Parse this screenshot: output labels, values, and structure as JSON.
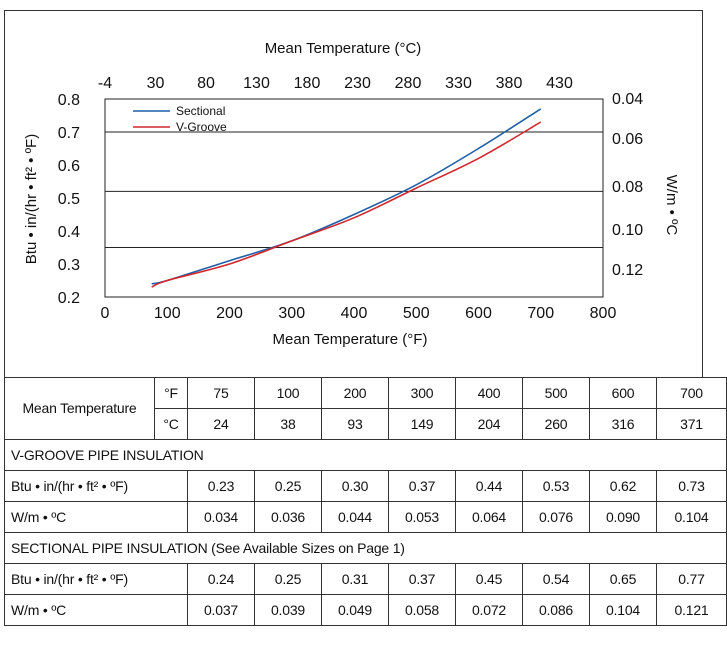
{
  "chart_data": {
    "type": "line",
    "x_axis": {
      "label": "Mean Temperature (°F)",
      "ticks": [
        0,
        100,
        200,
        300,
        400,
        500,
        600,
        700,
        800
      ],
      "range": [
        0,
        800
      ]
    },
    "x2_axis": {
      "label": "Mean Temperature (°C)",
      "ticks": [
        "-4",
        "30",
        "80",
        "130",
        "180",
        "230",
        "280",
        "330",
        "380",
        "430"
      ]
    },
    "y_axis": {
      "label": "Btu • in/(hr • ft² • ºF)",
      "ticks": [
        "0.2",
        "0.3",
        "0.4",
        "0.5",
        "0.6",
        "0.7",
        "0.8"
      ],
      "range": [
        0.2,
        0.8
      ]
    },
    "y2_axis": {
      "label": "W/m • ºC",
      "ticks": [
        "0.04",
        "0.06",
        "0.08",
        "0.10",
        "0.12"
      ]
    },
    "gridlines_y": [
      0.35,
      0.52,
      0.7
    ],
    "legend_position": "top-left",
    "series": [
      {
        "name": "Sectional",
        "color": "#1f5fa8",
        "x": [
          75,
          100,
          200,
          300,
          400,
          500,
          600,
          700
        ],
        "y": [
          0.24,
          0.25,
          0.31,
          0.37,
          0.45,
          0.54,
          0.65,
          0.77
        ]
      },
      {
        "name": "V-Groove",
        "color": "#d0282d",
        "x": [
          75,
          100,
          200,
          300,
          400,
          500,
          600,
          700
        ],
        "y": [
          0.23,
          0.25,
          0.3,
          0.37,
          0.44,
          0.53,
          0.62,
          0.73
        ]
      }
    ]
  },
  "table": {
    "mean_label": "Mean Temperature",
    "f_unit": "°F",
    "c_unit": "°C",
    "f_values": [
      "75",
      "100",
      "200",
      "300",
      "400",
      "500",
      "600",
      "700"
    ],
    "c_values": [
      "24",
      "38",
      "93",
      "149",
      "204",
      "260",
      "316",
      "371"
    ],
    "sections": [
      {
        "title": "V-GROOVE PIPE INSULATION",
        "rows": [
          {
            "label": "Btu • in/(hr • ft² • ºF)",
            "values": [
              "0.23",
              "0.25",
              "0.30",
              "0.37",
              "0.44",
              "0.53",
              "0.62",
              "0.73"
            ]
          },
          {
            "label": "W/m • ºC",
            "values": [
              "0.034",
              "0.036",
              "0.044",
              "0.053",
              "0.064",
              "0.076",
              "0.090",
              "0.104"
            ]
          }
        ]
      },
      {
        "title": "SECTIONAL PIPE INSULATION (See Available Sizes on Page 1)",
        "rows": [
          {
            "label": "Btu • in/(hr • ft² • ºF)",
            "values": [
              "0.24",
              "0.25",
              "0.31",
              "0.37",
              "0.45",
              "0.54",
              "0.65",
              "0.77"
            ]
          },
          {
            "label": "W/m • ºC",
            "values": [
              "0.037",
              "0.039",
              "0.049",
              "0.058",
              "0.072",
              "0.086",
              "0.104",
              "0.121"
            ]
          }
        ]
      }
    ]
  }
}
